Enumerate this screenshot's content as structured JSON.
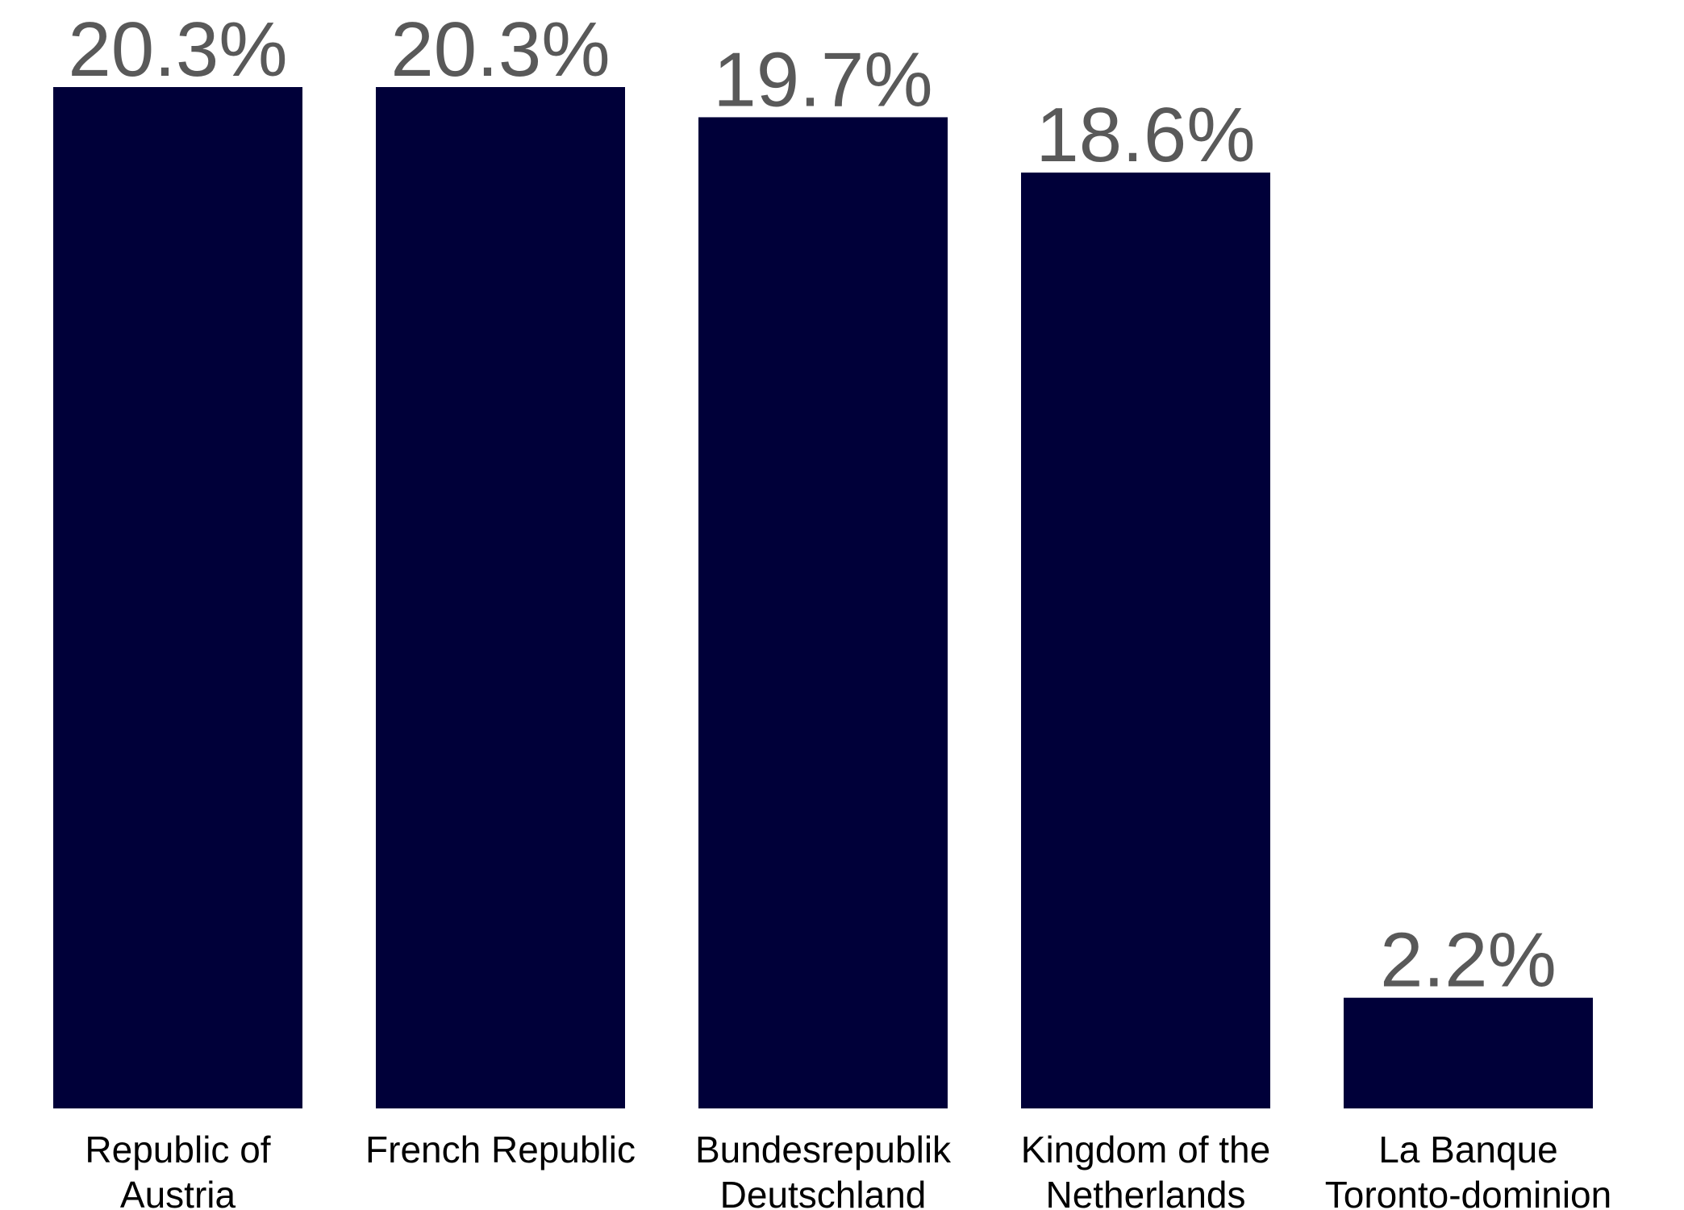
{
  "chart_data": {
    "type": "bar",
    "title": "",
    "xlabel": "",
    "ylabel": "",
    "ylim": [
      0,
      20.3
    ],
    "grid": false,
    "legend": "none",
    "bar_color": "#000039",
    "value_label_color": "#595959",
    "categories": [
      [
        "Republic of",
        "Austria"
      ],
      [
        "French Republic"
      ],
      [
        "Bundesrepublik",
        "Deutschland"
      ],
      [
        "Kingdom of the",
        "Netherlands"
      ],
      [
        "La Banque",
        "Toronto-dominion"
      ]
    ],
    "values": [
      20.3,
      20.3,
      19.7,
      18.6,
      2.2
    ],
    "value_labels": [
      "20.3%",
      "20.3%",
      "19.7%",
      "18.6%",
      "2.2%"
    ]
  }
}
